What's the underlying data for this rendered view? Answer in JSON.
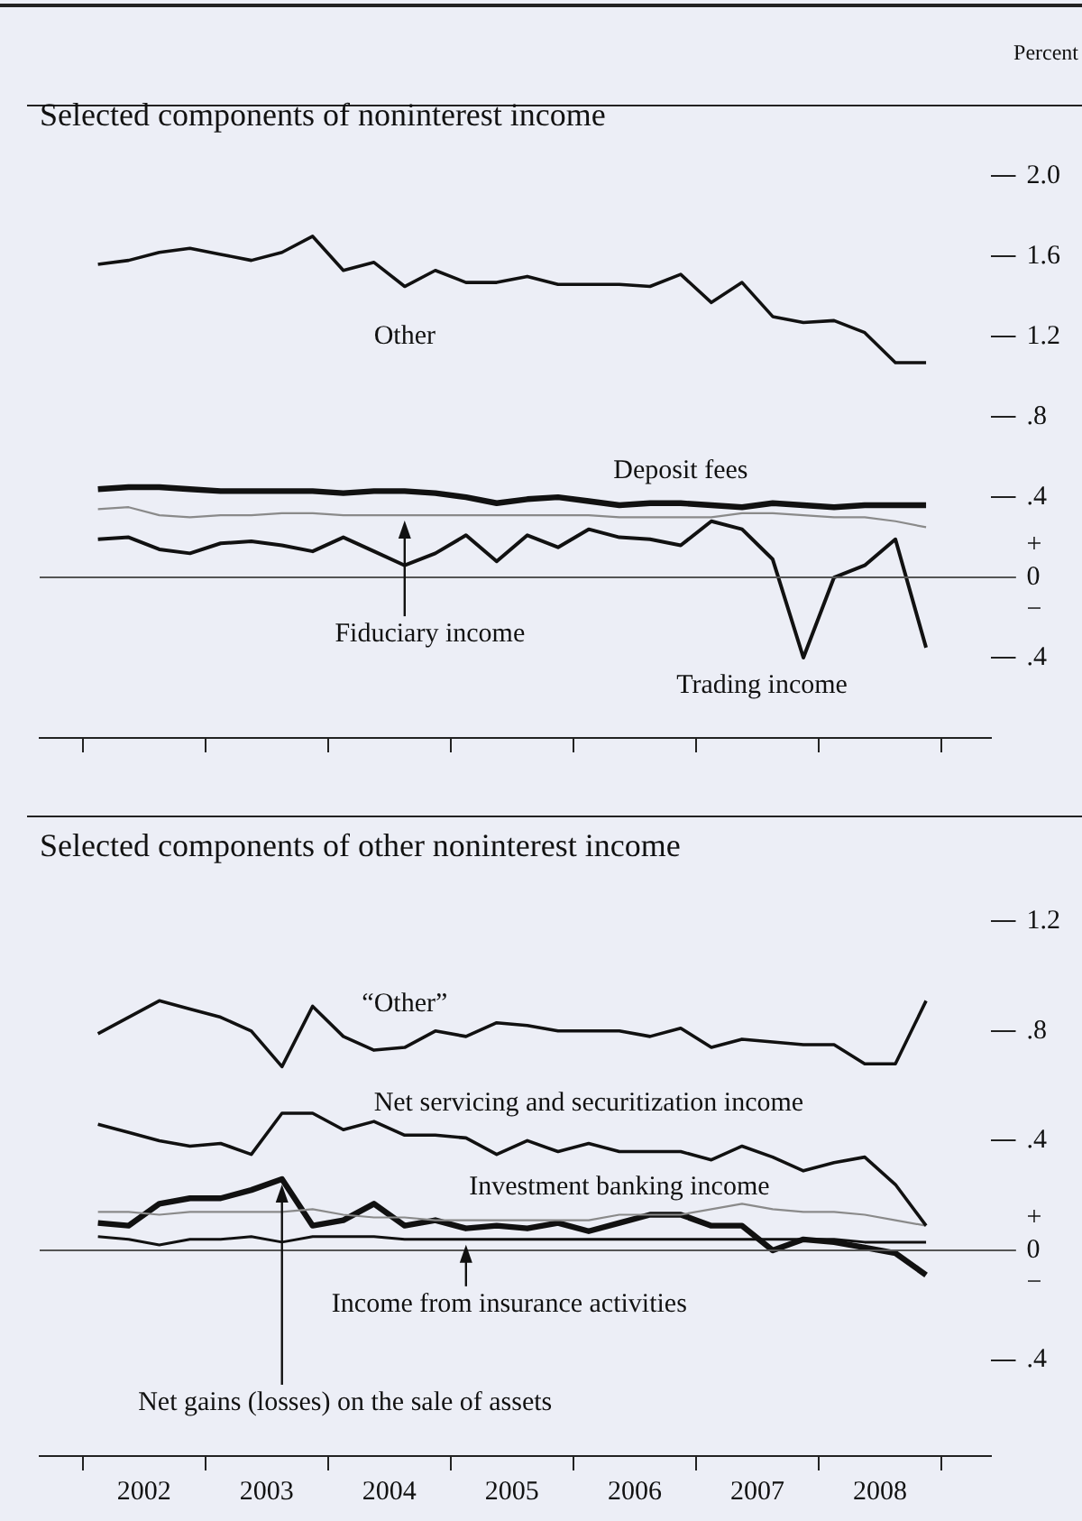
{
  "chart_data": [
    {
      "type": "line",
      "title": "Selected components of noninterest income",
      "ylabel": "Percent",
      "marker": "none",
      "tick_labels": "y",
      "x": [
        2002.125,
        2002.375,
        2002.625,
        2002.875,
        2003.125,
        2003.375,
        2003.625,
        2003.875,
        2004.125,
        2004.375,
        2004.625,
        2004.875,
        2005.125,
        2005.375,
        2005.625,
        2005.875,
        2006.125,
        2006.375,
        2006.625,
        2006.875,
        2007.125,
        2007.375,
        2007.625,
        2007.875,
        2008.125,
        2008.375,
        2008.625,
        2008.875
      ],
      "xlim": [
        2001.65,
        2009.4
      ],
      "xticks": [
        {
          "value": 2002,
          "label": null
        },
        {
          "value": 2003,
          "label": null
        },
        {
          "value": 2004,
          "label": null
        },
        {
          "value": 2005,
          "label": null
        },
        {
          "value": 2006,
          "label": null
        },
        {
          "value": 2007,
          "label": null
        },
        {
          "value": 2008,
          "label": null
        },
        {
          "value": 2009,
          "label": null
        }
      ],
      "ylim": [
        -0.8,
        2.0
      ],
      "yticks": [
        {
          "value": -0.4,
          "label": ".4"
        },
        {
          "value": 0,
          "label": "+\n0\n−"
        },
        {
          "value": 0.4,
          "label": ".4"
        },
        {
          "value": 0.8,
          "label": ".8"
        },
        {
          "value": 1.2,
          "label": "1.2"
        },
        {
          "value": 1.6,
          "label": "1.6"
        },
        {
          "value": 2.0,
          "label": "2.0"
        }
      ],
      "ref_lines": [
        {
          "axis": "y",
          "value": 0,
          "color": "#555555"
        }
      ],
      "series": [
        {
          "name": "Other",
          "color": "#111111",
          "values": [
            1.56,
            1.58,
            1.62,
            1.64,
            1.61,
            1.58,
            1.62,
            1.7,
            1.53,
            1.57,
            1.45,
            1.53,
            1.47,
            1.47,
            1.5,
            1.46,
            1.46,
            1.46,
            1.45,
            1.51,
            1.37,
            1.47,
            1.3,
            1.27,
            1.28,
            1.22,
            1.07,
            1.07
          ]
        },
        {
          "name": "Deposit fees",
          "color": "#111111",
          "values": [
            0.44,
            0.45,
            0.45,
            0.44,
            0.43,
            0.43,
            0.43,
            0.43,
            0.42,
            0.43,
            0.43,
            0.42,
            0.4,
            0.37,
            0.39,
            0.4,
            0.38,
            0.36,
            0.37,
            0.37,
            0.36,
            0.35,
            0.37,
            0.36,
            0.35,
            0.36,
            0.36,
            0.36
          ]
        },
        {
          "name": "Fiduciary income",
          "color": "#8a8a8a",
          "values": [
            0.34,
            0.35,
            0.31,
            0.3,
            0.31,
            0.31,
            0.32,
            0.32,
            0.31,
            0.31,
            0.31,
            0.31,
            0.31,
            0.31,
            0.31,
            0.31,
            0.31,
            0.3,
            0.3,
            0.3,
            0.3,
            0.32,
            0.32,
            0.31,
            0.3,
            0.3,
            0.28,
            0.25
          ]
        },
        {
          "name": "Trading income",
          "color": "#111111",
          "values": [
            0.19,
            0.2,
            0.14,
            0.12,
            0.17,
            0.18,
            0.16,
            0.13,
            0.2,
            0.13,
            0.06,
            0.12,
            0.21,
            0.08,
            0.21,
            0.15,
            0.24,
            0.2,
            0.19,
            0.16,
            0.28,
            0.24,
            0.09,
            -0.4,
            0.0,
            0.06,
            0.19,
            -0.35
          ]
        }
      ]
    },
    {
      "type": "line",
      "title": "Selected components of other noninterest income",
      "marker": "none",
      "x": [
        2002.125,
        2002.375,
        2002.625,
        2002.875,
        2003.125,
        2003.375,
        2003.625,
        2003.875,
        2004.125,
        2004.375,
        2004.625,
        2004.875,
        2005.125,
        2005.375,
        2005.625,
        2005.875,
        2006.125,
        2006.375,
        2006.625,
        2006.875,
        2007.125,
        2007.375,
        2007.625,
        2007.875,
        2008.125,
        2008.375,
        2008.625,
        2008.875
      ],
      "xlim": [
        2001.65,
        2009.4
      ],
      "xticks": [
        {
          "value": 2002,
          "label": null
        },
        {
          "value": 2002.5,
          "label": "2002"
        },
        {
          "value": 2003,
          "label": null
        },
        {
          "value": 2003.5,
          "label": "2003"
        },
        {
          "value": 2004,
          "label": null
        },
        {
          "value": 2004.5,
          "label": "2004"
        },
        {
          "value": 2005,
          "label": null
        },
        {
          "value": 2005.5,
          "label": "2005"
        },
        {
          "value": 2006,
          "label": null
        },
        {
          "value": 2006.5,
          "label": "2006"
        },
        {
          "value": 2007,
          "label": null
        },
        {
          "value": 2007.5,
          "label": "2007"
        },
        {
          "value": 2008,
          "label": null
        },
        {
          "value": 2008.5,
          "label": "2008"
        },
        {
          "value": 2009,
          "label": null
        }
      ],
      "ylim": [
        -0.75,
        1.2
      ],
      "yticks": [
        {
          "value": -0.4,
          "label": ".4"
        },
        {
          "value": 0,
          "label": "+\n0\n−"
        },
        {
          "value": 0.4,
          "label": ".4"
        },
        {
          "value": 0.8,
          "label": ".8"
        },
        {
          "value": 1.2,
          "label": "1.2"
        }
      ],
      "ref_lines": [
        {
          "axis": "y",
          "value": 0,
          "color": "#555555"
        }
      ],
      "series": [
        {
          "name": "“Other”",
          "color": "#111111",
          "values": [
            0.79,
            0.85,
            0.91,
            0.88,
            0.85,
            0.8,
            0.67,
            0.89,
            0.78,
            0.73,
            0.74,
            0.8,
            0.78,
            0.83,
            0.82,
            0.8,
            0.8,
            0.8,
            0.78,
            0.81,
            0.74,
            0.77,
            0.76,
            0.75,
            0.75,
            0.68,
            0.68,
            0.91
          ]
        },
        {
          "name": "Net servicing and securitization income",
          "color": "#111111",
          "values": [
            0.46,
            0.43,
            0.4,
            0.38,
            0.39,
            0.35,
            0.5,
            0.5,
            0.44,
            0.47,
            0.42,
            0.42,
            0.41,
            0.35,
            0.4,
            0.36,
            0.39,
            0.36,
            0.36,
            0.36,
            0.33,
            0.38,
            0.34,
            0.29,
            0.32,
            0.34,
            0.24,
            0.09
          ]
        },
        {
          "name": "Investment banking income",
          "color": "#8a8a8a",
          "values": [
            0.14,
            0.14,
            0.13,
            0.14,
            0.14,
            0.14,
            0.14,
            0.15,
            0.13,
            0.12,
            0.12,
            0.11,
            0.11,
            0.11,
            0.11,
            0.11,
            0.11,
            0.13,
            0.13,
            0.13,
            0.15,
            0.17,
            0.15,
            0.14,
            0.14,
            0.13,
            0.11,
            0.09
          ]
        },
        {
          "name": "Income from insurance activities",
          "color": "#111111",
          "values": [
            0.05,
            0.04,
            0.02,
            0.04,
            0.04,
            0.05,
            0.03,
            0.05,
            0.05,
            0.05,
            0.04,
            0.04,
            0.04,
            0.04,
            0.04,
            0.04,
            0.04,
            0.04,
            0.04,
            0.04,
            0.04,
            0.04,
            0.04,
            0.04,
            0.04,
            0.03,
            0.03,
            0.03
          ]
        },
        {
          "name": "Net gains (losses) on the sale of assets",
          "color": "#111111",
          "values": [
            0.1,
            0.09,
            0.17,
            0.19,
            0.19,
            0.22,
            0.26,
            0.09,
            0.11,
            0.17,
            0.09,
            0.11,
            0.08,
            0.09,
            0.08,
            0.1,
            0.07,
            0.1,
            0.13,
            0.13,
            0.09,
            0.09,
            0.0,
            0.04,
            0.03,
            0.01,
            -0.01,
            -0.09
          ]
        }
      ]
    }
  ]
}
